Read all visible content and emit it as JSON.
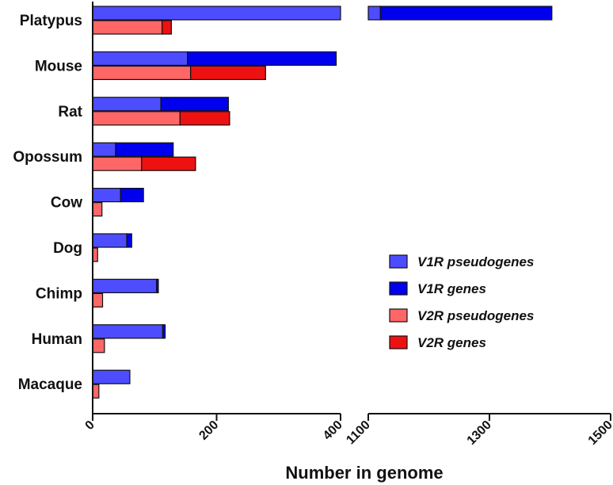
{
  "chart_data": {
    "type": "bar",
    "orientation": "horizontal",
    "stacked": true,
    "broken_axis": true,
    "categories": [
      "Platypus",
      "Mouse",
      "Rat",
      "Opossum",
      "Cow",
      "Dog",
      "Chimp",
      "Human",
      "Macaque"
    ],
    "series": [
      {
        "name": "V1R pseudogenes",
        "group": "V1R",
        "color": "#4D4DFF",
        "values": [
          1120,
          153,
          110,
          37,
          45,
          55,
          103,
          113,
          60
        ]
      },
      {
        "name": "V1R genes",
        "group": "V1R",
        "color": "#0000EE",
        "values": [
          283,
          240,
          109,
          93,
          37,
          8,
          3,
          4,
          0
        ]
      },
      {
        "name": "V2R pseudogenes",
        "group": "V2R",
        "color": "#FF6666",
        "values": [
          112,
          158,
          141,
          79,
          15,
          8,
          16,
          19,
          10
        ]
      },
      {
        "name": "V2R genes",
        "group": "V2R",
        "color": "#EE1111",
        "values": [
          15,
          121,
          80,
          87,
          0,
          0,
          0,
          0,
          0
        ]
      }
    ],
    "xlabel": "Number in genome",
    "ylabel": "",
    "x_segments": [
      {
        "range": [
          0,
          400
        ],
        "ticks": [
          "0",
          "200",
          "400"
        ],
        "tick_values": [
          0,
          200,
          400
        ]
      },
      {
        "range": [
          1100,
          1500
        ],
        "ticks": [
          "1100",
          "1300",
          "1500"
        ],
        "tick_values": [
          1100,
          1300,
          1500
        ]
      }
    ],
    "legend": [
      "V1R pseudogenes",
      "V1R genes",
      "V2R pseudogenes",
      "V2R genes"
    ],
    "legend_position": "bottom-right",
    "grid": false
  }
}
